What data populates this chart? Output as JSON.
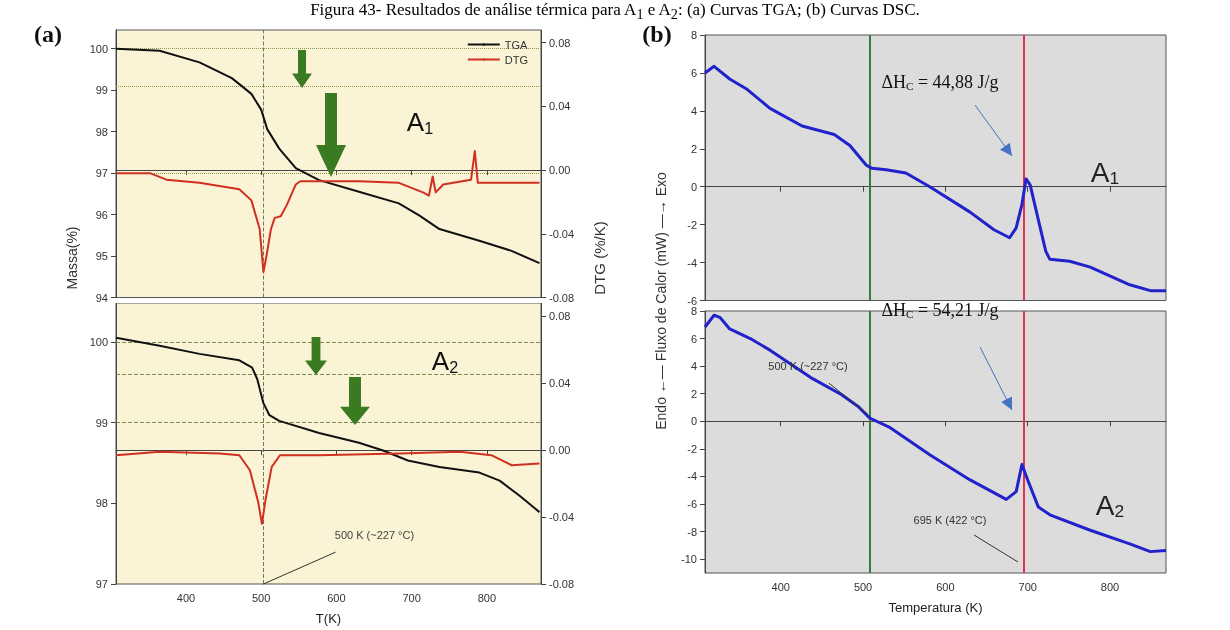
{
  "chart_data": [
    {
      "type": "line",
      "title": "Figura 43- Resultados de análise térmica para A$_{1}$ e A$_{2}$: (a) Curvas TGA; (b) Curvas DSC.",
      "ylabel": "Massa(%)",
      "y2label": "DTG (%/K)",
      "annotations": [
        "(a)",
        "A$_{1}$"
      ],
      "xlim": [
        307,
        872
      ],
      "xticks": [
        400,
        500,
        600,
        700,
        800
      ],
      "ylim": [
        94,
        100.45
      ],
      "yticks": [
        94,
        95,
        96,
        97,
        98,
        99,
        100
      ],
      "y2lim": [
        -0.08,
        0.088
      ],
      "y2ticks": [
        -0.08,
        -0.04,
        {
          "value": 0,
          "label": "0.00"
        },
        0.04,
        0.08
      ],
      "tick_labels": "y",
      "legend": "top right",
      "ref_lines": [
        {
          "axis": "y",
          "value": 100,
          "color": "#8a9a50",
          "line_style": "dotted"
        },
        {
          "axis": "y",
          "value": 99.1,
          "color": "#8a9a50",
          "line_style": "dotted"
        },
        {
          "axis": "y",
          "value": 97,
          "color": "#8a9a50",
          "line_style": "dotted"
        },
        {
          "axis": "x",
          "value": 503,
          "color": "#6a7a60",
          "line_style": "dashed"
        }
      ],
      "series": [
        {
          "name": "TGA",
          "color": "#111111",
          "x": [
            307,
            365,
            418,
            461,
            487,
            500,
            508,
            524,
            546,
            577,
            630,
            683,
            710,
            737,
            790,
            832,
            870
          ],
          "values": [
            100.0,
            99.95,
            99.67,
            99.29,
            98.91,
            98.53,
            98.06,
            97.59,
            97.12,
            96.83,
            96.55,
            96.27,
            95.98,
            95.65,
            95.37,
            95.13,
            94.83
          ]
        },
        {
          "name": "DTG",
          "color": "#d03020",
          "axis": "y2",
          "x": [
            307,
            353,
            374,
            418,
            471,
            487,
            498,
            503,
            507,
            513,
            518,
            526,
            534,
            546,
            552,
            577,
            630,
            683,
            715,
            723,
            728,
            732,
            742,
            779,
            784,
            788,
            816,
            870
          ],
          "values": [
            -0.002,
            -0.002,
            -0.006,
            -0.008,
            -0.012,
            -0.019,
            -0.037,
            -0.064,
            -0.054,
            -0.037,
            -0.03,
            -0.029,
            -0.022,
            -0.009,
            -0.007,
            -0.007,
            -0.007,
            -0.008,
            -0.014,
            -0.016,
            -0.004,
            -0.014,
            -0.009,
            -0.006,
            0.012,
            -0.008,
            -0.008,
            -0.008
          ]
        }
      ]
    },
    {
      "type": "line",
      "xlabel": "T(K)",
      "annotations": [
        "A$_{2}$",
        {
          "text": "500 K (~227 °C)",
          "x": 503,
          "y": 97
        }
      ],
      "xlim": [
        307,
        872
      ],
      "xticks": [
        400,
        500,
        600,
        700,
        800
      ],
      "ylim": [
        97,
        100.48
      ],
      "yticks": [
        97,
        98,
        99,
        100
      ],
      "y2lim": [
        -0.08,
        0.088
      ],
      "y2ticks": [
        -0.08,
        -0.04,
        {
          "value": 0,
          "label": "0.00"
        },
        0.04,
        0.08
      ],
      "ref_lines": [
        {
          "axis": "y",
          "value": 100,
          "color": "#7a8a50",
          "line_style": "dashed"
        },
        {
          "axis": "y",
          "value": 99.6,
          "color": "#7a8a50",
          "line_style": "dashed"
        },
        {
          "axis": "y",
          "value": 99,
          "color": "#7a8a50",
          "line_style": "dashed"
        },
        {
          "axis": "x",
          "value": 503,
          "color": "#6a7a60",
          "line_style": "dashed"
        }
      ],
      "series": [
        {
          "color": "#111111",
          "x": [
            307,
            365,
            418,
            471,
            488,
            495,
            503,
            511,
            524,
            577,
            630,
            663,
            695,
            737,
            790,
            817,
            844,
            870
          ],
          "values": [
            100.05,
            99.95,
            99.85,
            99.77,
            99.68,
            99.53,
            99.24,
            99.09,
            99.02,
            98.87,
            98.75,
            98.65,
            98.53,
            98.45,
            98.38,
            98.28,
            98.09,
            97.89
          ]
        },
        {
          "color": "#d03020",
          "axis": "y2",
          "x": [
            307,
            365,
            445,
            471,
            485,
            496,
            501,
            506,
            514,
            525,
            577,
            684,
            764,
            806,
            833,
            870
          ],
          "values": [
            -0.003,
            -0.001,
            -0.002,
            -0.003,
            -0.012,
            -0.031,
            -0.044,
            -0.029,
            -0.01,
            -0.003,
            -0.003,
            -0.002,
            -0.001,
            -0.003,
            -0.009,
            -0.008
          ]
        }
      ]
    },
    {
      "type": "line",
      "annotations": [
        "(b)",
        "ΔH$_{C}$ = 44,88 J/g"
      ],
      "xlim": [
        308,
        868
      ],
      "xticks": [
        400,
        500,
        600,
        700,
        800
      ],
      "ylim": [
        -6,
        8
      ],
      "yticks": [
        -6,
        -4,
        -2,
        0,
        2,
        4,
        6,
        8
      ],
      "tick_labels": "y",
      "ref_lines": [
        {
          "axis": "x",
          "value": 508,
          "color": "#3a7a3a"
        },
        {
          "axis": "x",
          "value": 695,
          "color": "#e8304a"
        }
      ],
      "series": [
        {
          "name": "A$_{1}$",
          "color": "#2222cc",
          "x": [
            308,
            319,
            338,
            358,
            387,
            426,
            465,
            484,
            504,
            511,
            528,
            552,
            581,
            630,
            659,
            678,
            686,
            693,
            698,
            703,
            713,
            722,
            727,
            751,
            776,
            824,
            849,
            868
          ],
          "values": [
            6.0,
            6.35,
            5.68,
            5.17,
            4.13,
            3.2,
            2.75,
            2.17,
            1.13,
            0.97,
            0.89,
            0.72,
            0.0,
            -1.34,
            -2.27,
            -2.69,
            -2.17,
            -0.93,
            0.41,
            0.1,
            -1.76,
            -3.41,
            -3.83,
            -3.93,
            -4.24,
            -5.17,
            -5.48,
            -5.48
          ]
        }
      ]
    },
    {
      "type": "line",
      "xlabel": "Temperatura (K)",
      "ylabel": "Endo ←— Fluxo de Calor (mW) —→ Exo",
      "annotations": [
        "ΔH$_{C}$ = 54,21 J/g",
        {
          "text": "500 K (~227 °C)",
          "x": 506,
          "y": 0.5
        },
        "695 K (422 °C)"
      ],
      "xlim": [
        308,
        868
      ],
      "xticks": [
        400,
        500,
        600,
        700,
        800
      ],
      "ylim": [
        -11,
        8
      ],
      "yticks": [
        -10,
        -8,
        -6,
        -4,
        -2,
        0,
        2,
        4,
        6,
        8
      ],
      "ref_lines": [
        {
          "axis": "x",
          "value": 508,
          "color": "#3a7a3a"
        },
        {
          "axis": "x",
          "value": 695,
          "color": "#e8304a"
        }
      ],
      "series": [
        {
          "name": "A$_{2}$",
          "color": "#2222cc",
          "x": [
            308,
            319,
            326,
            338,
            363,
            387,
            436,
            474,
            494,
            508,
            533,
            581,
            630,
            674,
            686,
            693,
            700,
            713,
            727,
            776,
            824,
            849,
            868
          ],
          "values": [
            6.84,
            7.69,
            7.54,
            6.7,
            6.0,
            5.16,
            3.19,
            1.93,
            1.08,
            0.24,
            -0.46,
            -2.43,
            -4.25,
            -5.66,
            -5.1,
            -3.13,
            -4.25,
            -6.22,
            -6.78,
            -7.9,
            -8.89,
            -9.45,
            -9.37
          ]
        }
      ]
    }
  ]
}
